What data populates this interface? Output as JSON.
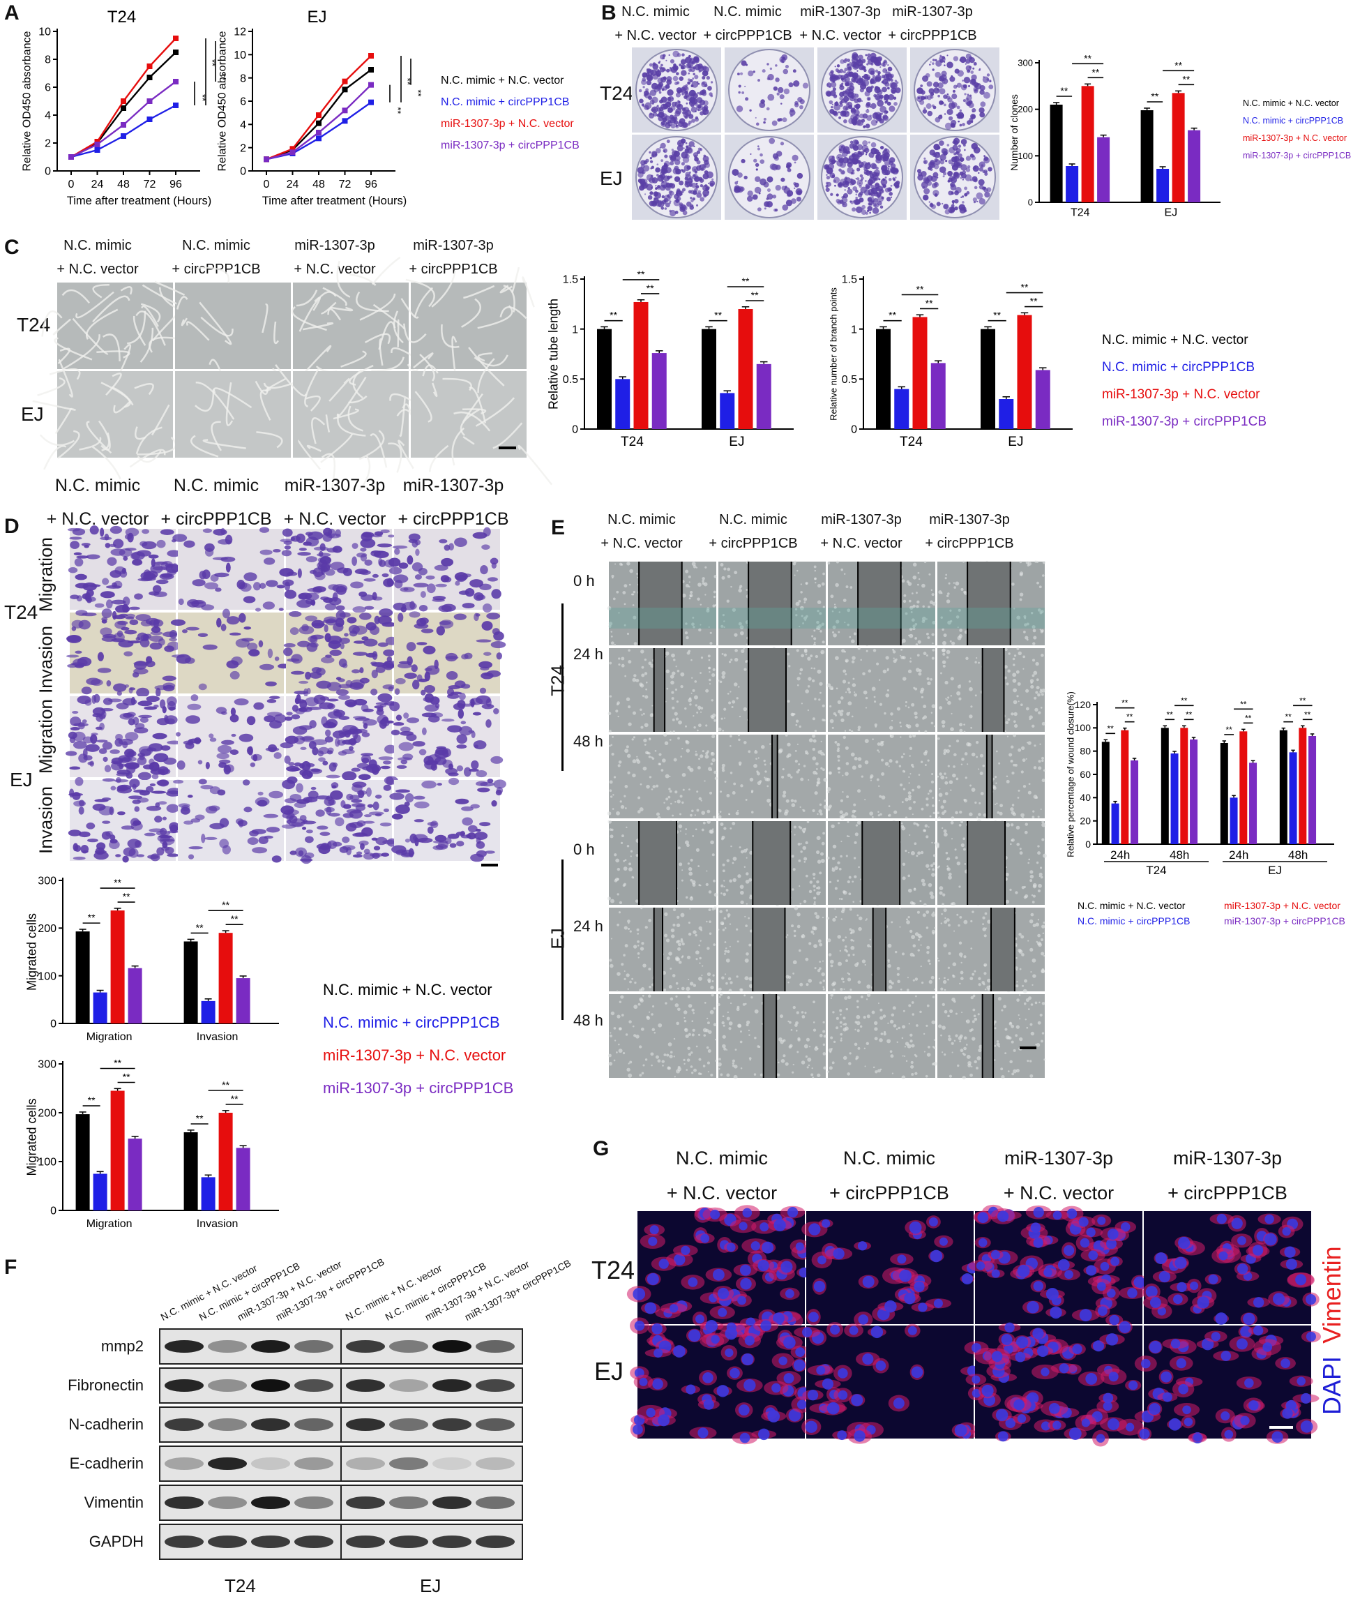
{
  "panel_labels": {
    "A": "A",
    "B": "B",
    "C": "C",
    "D": "D",
    "E": "E",
    "F": "F",
    "G": "G"
  },
  "groups": [
    {
      "line1": "N.C. mimic",
      "line2": "+ N.C. vector",
      "color": "#000000"
    },
    {
      "line1": "N.C. mimic",
      "line2": "+ circPPP1CB",
      "color": "#1f1fe6"
    },
    {
      "line1": "miR-1307-3p",
      "line2": "+ N.C. vector",
      "color": "#e60d0d"
    },
    {
      "line1": "miR-1307-3p",
      "line2": "+ circPPP1CB",
      "color": "#7a2bc2"
    }
  ],
  "legend_items": [
    "N.C. mimic + N.C. vector",
    "N.C. mimic + circPPP1CB",
    "miR-1307-3p + N.C. vector",
    "miR-1307-3p + circPPP1CB"
  ],
  "cells": {
    "t24": "T24",
    "ej": "EJ"
  },
  "sig": "**",
  "panelA": {
    "xlabel": "Time after treatment (Hours)",
    "ylabel": "Relative OD450 absorbance"
  },
  "panelD": {
    "migration": "Migration",
    "invasion": "Invasion"
  },
  "panelE": {
    "times": [
      "0 h",
      "24 h",
      "48 h"
    ]
  },
  "panelF": {
    "headers_t24": [
      "N.C. mimic + N.C. vector",
      "N.C. mimic + circPPP1CB",
      "miR-1307-3p + N.C. vector",
      "miR-1307-3p + circPPP1CB"
    ],
    "headers_ej": [
      "N.C. mimic + N.C. vector",
      "N.C. mimic + circPPP1CB",
      "miR-1307-3p + N.C. vector",
      "miR-1307-3p+ circPPP1CB"
    ],
    "proteins": [
      "mmp2",
      "Fibronectin",
      "N-cadherin",
      "E-cadherin",
      "Vimentin",
      "GAPDH"
    ]
  },
  "panelG": {
    "stain1": "Vimentin",
    "stain2": "DAPI",
    "stain1_color": "#e82020",
    "stain2_color": "#1d1dd6"
  },
  "chart_data": [
    {
      "id": "A_T24",
      "type": "line",
      "title": "T24",
      "xlabel": "Time after treatment (Hours)",
      "ylabel": "Relative OD450 absorbance",
      "x": [
        0,
        24,
        48,
        72,
        96
      ],
      "ylim": [
        0,
        10
      ],
      "yticks": [
        0,
        2,
        4,
        6,
        8,
        10
      ],
      "series": [
        {
          "name": "N.C. mimic + N.C. vector",
          "values": [
            1,
            2,
            4.5,
            6.7,
            8.5
          ]
        },
        {
          "name": "N.C. mimic + circPPP1CB",
          "values": [
            1,
            1.5,
            2.5,
            3.7,
            4.7
          ]
        },
        {
          "name": "miR-1307-3p + N.C. vector",
          "values": [
            1,
            2.1,
            5,
            7.5,
            9.5
          ]
        },
        {
          "name": "miR-1307-3p + circPPP1CB",
          "values": [
            1,
            1.9,
            3.3,
            5,
            6.4
          ]
        }
      ]
    },
    {
      "id": "A_EJ",
      "type": "line",
      "title": "EJ",
      "xlabel": "Time after treatment (Hours)",
      "ylabel": "Relative OD450 absorbance",
      "x": [
        0,
        24,
        48,
        72,
        96
      ],
      "ylim": [
        0,
        12
      ],
      "yticks": [
        0,
        2,
        4,
        6,
        8,
        10,
        12
      ],
      "series": [
        {
          "name": "N.C. mimic + N.C. vector",
          "values": [
            1,
            1.8,
            4.1,
            7,
            8.7
          ]
        },
        {
          "name": "N.C. mimic + circPPP1CB",
          "values": [
            1,
            1.5,
            2.8,
            4.3,
            5.9
          ]
        },
        {
          "name": "miR-1307-3p + N.C. vector",
          "values": [
            1,
            1.9,
            4.8,
            7.7,
            9.9
          ]
        },
        {
          "name": "miR-1307-3p + circPPP1CB",
          "values": [
            1,
            1.6,
            3.3,
            5.2,
            7.4
          ]
        }
      ]
    },
    {
      "id": "B",
      "type": "bar",
      "ylabel": "Number of clones",
      "categories": [
        "T24",
        "EJ"
      ],
      "ylim": [
        0,
        300
      ],
      "yticks": [
        0,
        100,
        200,
        300
      ],
      "series": [
        {
          "name": "N.C. mimic + N.C. vector",
          "values": [
            210,
            198
          ]
        },
        {
          "name": "N.C. mimic + circPPP1CB",
          "values": [
            78,
            72
          ]
        },
        {
          "name": "miR-1307-3p + N.C. vector",
          "values": [
            250,
            235
          ]
        },
        {
          "name": "miR-1307-3p + circPPP1CB",
          "values": [
            140,
            155
          ]
        }
      ]
    },
    {
      "id": "C_tube",
      "type": "bar",
      "ylabel": "Relative tube length",
      "categories": [
        "T24",
        "EJ"
      ],
      "ylim": [
        0,
        1.5
      ],
      "yticks": [
        0,
        0.5,
        1.0,
        1.5
      ],
      "series": [
        {
          "name": "N.C. mimic + N.C. vector",
          "values": [
            1.0,
            1.0
          ]
        },
        {
          "name": "N.C. mimic + circPPP1CB",
          "values": [
            0.5,
            0.36
          ]
        },
        {
          "name": "miR-1307-3p + N.C. vector",
          "values": [
            1.27,
            1.2
          ]
        },
        {
          "name": "miR-1307-3p + circPPP1CB",
          "values": [
            0.76,
            0.65
          ]
        }
      ]
    },
    {
      "id": "C_branch",
      "type": "bar",
      "ylabel": "Relative number of branch points",
      "categories": [
        "T24",
        "EJ"
      ],
      "ylim": [
        0,
        1.5
      ],
      "yticks": [
        0,
        0.5,
        1.0,
        1.5
      ],
      "series": [
        {
          "name": "N.C. mimic + N.C. vector",
          "values": [
            1.0,
            1.0
          ]
        },
        {
          "name": "N.C. mimic + circPPP1CB",
          "values": [
            0.4,
            0.3
          ]
        },
        {
          "name": "miR-1307-3p + N.C. vector",
          "values": [
            1.12,
            1.14
          ]
        },
        {
          "name": "miR-1307-3p + circPPP1CB",
          "values": [
            0.66,
            0.59
          ]
        }
      ]
    },
    {
      "id": "D_T24",
      "type": "bar",
      "ylabel": "Migrated cells",
      "categories": [
        "Migration",
        "Invasion"
      ],
      "ylim": [
        0,
        300
      ],
      "yticks": [
        0,
        100,
        200,
        300
      ],
      "series": [
        {
          "name": "N.C. mimic + N.C. vector",
          "values": [
            193,
            172
          ]
        },
        {
          "name": "N.C. mimic + circPPP1CB",
          "values": [
            65,
            47
          ]
        },
        {
          "name": "miR-1307-3p + N.C. vector",
          "values": [
            237,
            190
          ]
        },
        {
          "name": "miR-1307-3p + circPPP1CB",
          "values": [
            116,
            95
          ]
        }
      ]
    },
    {
      "id": "D_EJ",
      "type": "bar",
      "ylabel": "Migrated cells",
      "categories": [
        "Migration",
        "Invasion"
      ],
      "ylim": [
        0,
        300
      ],
      "yticks": [
        0,
        100,
        200,
        300
      ],
      "series": [
        {
          "name": "N.C. mimic + N.C. vector",
          "values": [
            197,
            160
          ]
        },
        {
          "name": "N.C. mimic + circPPP1CB",
          "values": [
            75,
            68
          ]
        },
        {
          "name": "miR-1307-3p + N.C. vector",
          "values": [
            245,
            200
          ]
        },
        {
          "name": "miR-1307-3p + circPPP1CB",
          "values": [
            147,
            128
          ]
        }
      ]
    },
    {
      "id": "E",
      "type": "bar",
      "ylabel": "Relative percentage of wound closure(%)",
      "categories": [
        "24h",
        "48h",
        "24h",
        "48h"
      ],
      "cell_groups": [
        "T24",
        "EJ"
      ],
      "ylim": [
        0,
        120
      ],
      "yticks": [
        0,
        20,
        40,
        60,
        80,
        100,
        120
      ],
      "series": [
        {
          "name": "N.C. mimic + N.C. vector",
          "values": [
            88,
            100,
            87,
            98
          ]
        },
        {
          "name": "N.C. mimic + circPPP1CB",
          "values": [
            35,
            78,
            40,
            79
          ]
        },
        {
          "name": "miR-1307-3p + N.C. vector",
          "values": [
            98,
            100,
            97,
            100
          ]
        },
        {
          "name": "miR-1307-3p + circPPP1CB",
          "values": [
            72,
            90,
            70,
            93
          ]
        }
      ]
    }
  ]
}
